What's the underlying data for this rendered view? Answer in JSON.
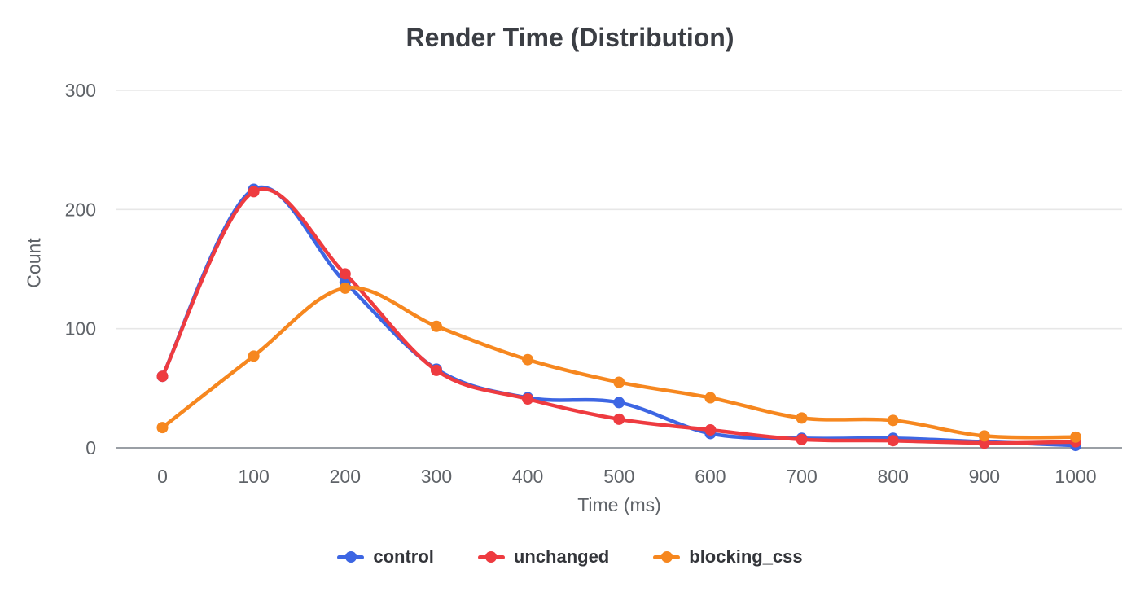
{
  "chart_data": {
    "type": "line",
    "title": "Render Time (Distribution)",
    "xlabel": "Time (ms)",
    "ylabel": "Count",
    "x": [
      0,
      100,
      200,
      300,
      400,
      500,
      600,
      700,
      800,
      900,
      1000
    ],
    "y_ticks": [
      0,
      100,
      200,
      300
    ],
    "ylim": [
      0,
      300
    ],
    "grid": true,
    "legend_position": "bottom",
    "colors": {
      "grid": "#e7e7e7",
      "zero_line": "#9a9fa5",
      "tick_label": "#5f6368"
    },
    "series": [
      {
        "name": "control",
        "color": "#3d66e3",
        "values": [
          60,
          217,
          139,
          66,
          42,
          38,
          12,
          8,
          8,
          5,
          2
        ]
      },
      {
        "name": "unchanged",
        "color": "#ee3b40",
        "values": [
          60,
          215,
          146,
          65,
          41,
          24,
          15,
          7,
          6,
          4,
          5
        ]
      },
      {
        "name": "blocking_css",
        "color": "#f6871f",
        "values": [
          17,
          77,
          134,
          102,
          74,
          55,
          42,
          25,
          23,
          10,
          9
        ]
      }
    ]
  }
}
